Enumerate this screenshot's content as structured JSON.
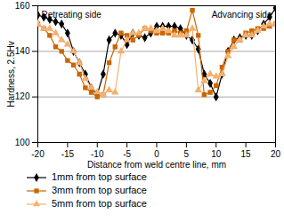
{
  "chart_data": {
    "type": "line",
    "x_label": "Distance from weld centre line, mm",
    "y_label": "Hardness, 2.5Hv",
    "annotations": [
      "Retreating side",
      "Advancing side"
    ],
    "x": [
      -20,
      -19,
      -18,
      -17,
      -16,
      -15,
      -14,
      -13,
      -12,
      -11,
      -10,
      -9,
      -8,
      -7,
      -6,
      -5,
      -4,
      -3,
      -2,
      -1,
      0,
      1,
      2,
      3,
      4,
      5,
      6,
      7,
      8,
      9,
      10,
      11,
      12,
      13,
      14,
      15,
      16,
      17,
      18,
      19,
      20
    ],
    "series": [
      {
        "name": "1mm from top surface",
        "color": "#000000",
        "marker": "diamond",
        "line_style": "solid",
        "values": [
          156,
          155,
          154,
          153,
          152,
          148,
          140,
          135,
          130,
          124,
          121,
          130,
          145,
          148,
          147,
          143,
          148,
          147,
          146,
          148,
          151,
          151,
          151,
          151,
          150,
          147,
          145,
          141,
          130,
          126,
          120,
          130,
          140,
          145,
          146,
          147,
          147,
          149,
          152,
          155,
          159
        ]
      },
      {
        "name": "3mm from top surface",
        "color": "#cc6600",
        "marker": "square",
        "line_style": "solid",
        "values": [
          152,
          150,
          147,
          142,
          140,
          136,
          134,
          130,
          124,
          122,
          120,
          121,
          135,
          142,
          148,
          147,
          145,
          147,
          150,
          149,
          148,
          148,
          148,
          149,
          148,
          149,
          158,
          147,
          121,
          122,
          125,
          133,
          140,
          145,
          145,
          148,
          149,
          150,
          150,
          151,
          152
        ]
      },
      {
        "name": "5mm from top surface",
        "color": "#f5b070",
        "marker": "triangle",
        "line_style": "solid",
        "values": [
          152,
          150,
          150,
          148,
          145,
          143,
          140,
          135,
          128,
          124,
          122,
          121,
          123,
          122,
          140,
          145,
          148,
          148,
          150,
          150,
          149,
          150,
          149,
          147,
          147,
          147,
          150,
          123,
          127,
          130,
          129,
          130,
          138,
          142,
          145,
          147,
          147,
          149,
          151,
          152,
          152
        ]
      }
    ],
    "xlim": [
      -20,
      20
    ],
    "xticks": [
      -20,
      -15,
      -10,
      -5,
      0,
      5,
      10,
      15,
      20
    ],
    "ylim": [
      100,
      160
    ],
    "yticks": [
      100,
      120,
      140,
      160
    ],
    "grid": true
  }
}
